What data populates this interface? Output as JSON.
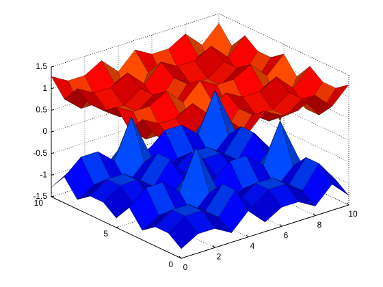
{
  "chart_data": {
    "type": "surface",
    "colormap": "jet",
    "grid": true,
    "x": [
      0,
      1,
      2,
      3,
      4,
      5,
      6,
      7,
      8,
      9,
      10
    ],
    "y": [
      0,
      1,
      2,
      3,
      4,
      5,
      6,
      7,
      8,
      9,
      10
    ],
    "xlim": [
      0,
      10
    ],
    "ylim": [
      0,
      10
    ],
    "zlim": [
      -1.5,
      1.5
    ],
    "xticks": [
      0,
      2,
      4,
      6,
      8,
      10
    ],
    "yticks": [
      0,
      5,
      10
    ],
    "zticks": [
      -1.5,
      -1,
      -0.5,
      0,
      0.5,
      1,
      1.5
    ],
    "series": [
      {
        "values": [
          [
            1.28,
            1.06,
            1.06,
            1.28,
            0.9,
            1.28,
            1.06,
            1.06,
            1.28,
            0.9,
            1.28
          ],
          [
            1.06,
            0.79,
            0.79,
            1.06,
            0.56,
            1.06,
            0.79,
            0.79,
            1.06,
            0.56,
            1.06
          ],
          [
            1.06,
            0.79,
            0.79,
            1.06,
            0.56,
            1.06,
            0.79,
            0.79,
            1.06,
            0.56,
            1.06
          ],
          [
            1.28,
            1.06,
            1.06,
            1.28,
            0.9,
            1.28,
            1.06,
            1.06,
            1.28,
            0.9,
            1.28
          ],
          [
            0.9,
            0.56,
            0.56,
            0.9,
            0,
            0.9,
            0.56,
            0.56,
            0.9,
            0,
            0.9
          ],
          [
            1.28,
            1.06,
            1.06,
            1.28,
            0.9,
            1.28,
            1.06,
            1.06,
            1.28,
            0.9,
            1.28
          ],
          [
            1.06,
            0.79,
            0.79,
            1.06,
            0.56,
            1.06,
            0.79,
            0.79,
            1.06,
            0.56,
            1.06
          ],
          [
            1.06,
            0.79,
            0.79,
            1.06,
            0.56,
            1.06,
            0.79,
            0.79,
            1.06,
            0.56,
            1.06
          ],
          [
            1.28,
            1.06,
            1.06,
            1.28,
            0.9,
            1.28,
            1.06,
            1.06,
            1.28,
            0.9,
            1.28
          ],
          [
            0.9,
            0.56,
            0.56,
            0.9,
            0,
            0.9,
            0.56,
            0.56,
            0.9,
            0,
            0.9
          ],
          [
            1.28,
            1.06,
            1.06,
            1.28,
            0.9,
            1.28,
            1.06,
            1.06,
            1.28,
            0.9,
            1.28
          ]
        ]
      },
      {
        "values": [
          [
            -1.28,
            -1.06,
            -1.06,
            -1.28,
            -0.9,
            -1.28,
            -1.06,
            -1.06,
            -1.28,
            -0.9,
            -1.28
          ],
          [
            -1.06,
            -0.79,
            -0.79,
            -1.06,
            -0.56,
            -1.06,
            -0.79,
            -0.79,
            -1.06,
            -0.56,
            -1.06
          ],
          [
            -1.06,
            -0.79,
            -0.79,
            -1.06,
            -0.56,
            -1.06,
            -0.79,
            -0.79,
            -1.06,
            -0.56,
            -1.06
          ],
          [
            -1.28,
            -1.06,
            -1.06,
            -1.28,
            -0.9,
            -1.28,
            -1.06,
            -1.06,
            -1.28,
            -0.9,
            -1.28
          ],
          [
            -0.9,
            -0.56,
            -0.56,
            -0.9,
            0,
            -0.9,
            -0.56,
            -0.56,
            -0.9,
            0,
            -0.9
          ],
          [
            -1.28,
            -1.06,
            -1.06,
            -1.28,
            -0.9,
            -1.28,
            -1.06,
            -1.06,
            -1.28,
            -0.9,
            -1.28
          ],
          [
            -1.06,
            -0.79,
            -0.79,
            -1.06,
            -0.56,
            -1.06,
            -0.79,
            -0.79,
            -1.06,
            -0.56,
            -1.06
          ],
          [
            -1.06,
            -0.79,
            -0.79,
            -1.06,
            -0.56,
            -1.06,
            -0.79,
            -0.79,
            -1.06,
            -0.56,
            -1.06
          ],
          [
            -1.28,
            -1.06,
            -1.06,
            -1.28,
            -0.9,
            -1.28,
            -1.06,
            -1.06,
            -1.28,
            -0.9,
            -1.28
          ],
          [
            -0.9,
            -0.56,
            -0.56,
            -0.9,
            0,
            -0.9,
            -0.56,
            -0.56,
            -0.9,
            0,
            -0.9
          ],
          [
            -1.28,
            -1.06,
            -1.06,
            -1.28,
            -0.9,
            -1.28,
            -1.06,
            -1.06,
            -1.28,
            -0.9,
            -1.28
          ]
        ]
      }
    ]
  }
}
